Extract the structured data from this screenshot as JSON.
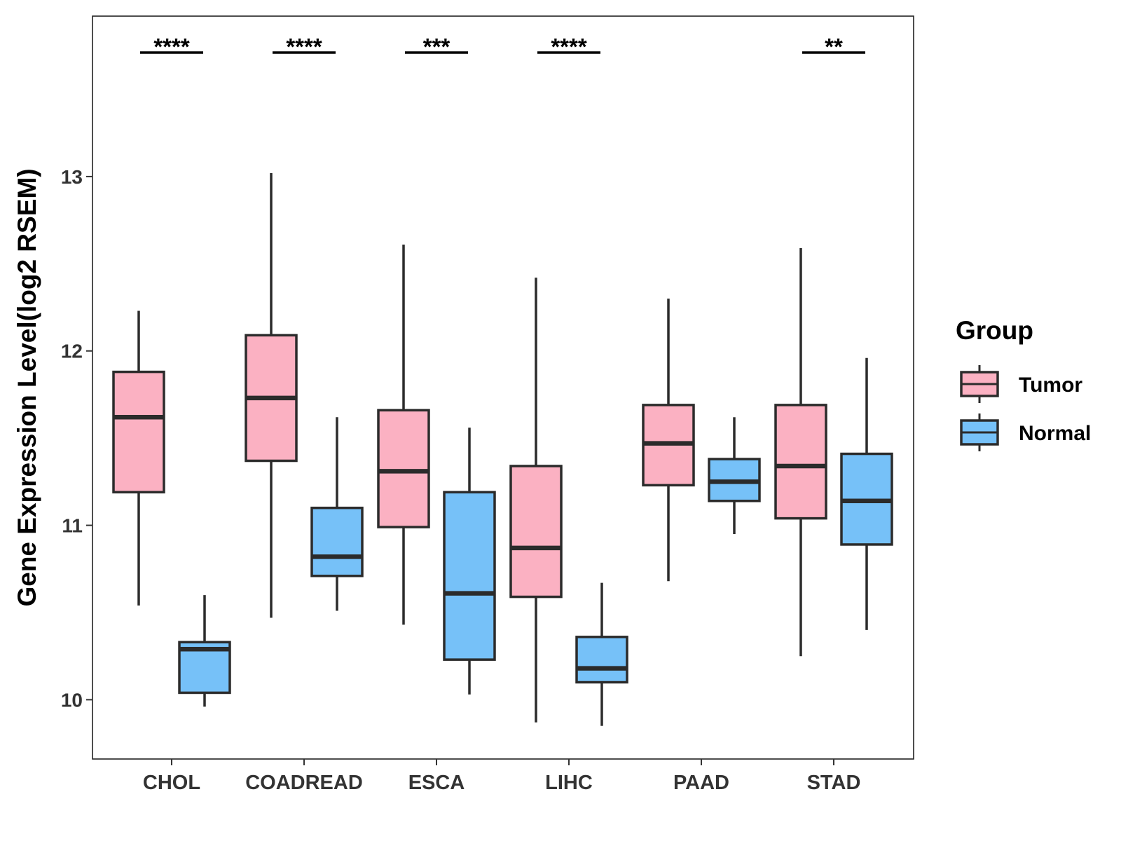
{
  "chart_data": {
    "type": "boxplot",
    "title": "",
    "xlabel": "",
    "ylabel": "Gene Expression Level(log2 RSEM)",
    "ylim": [
      9.66,
      13.92
    ],
    "yticks": [
      10,
      11,
      12,
      13
    ],
    "categories": [
      "CHOL",
      "COADREAD",
      "ESCA",
      "LIHC",
      "PAAD",
      "STAD"
    ],
    "series": [
      {
        "name": "Tumor",
        "color": "#FBB1C2",
        "boxes": [
          {
            "whisker_low": 10.54,
            "q1": 11.19,
            "median": 11.62,
            "q3": 11.88,
            "whisker_high": 12.23
          },
          {
            "whisker_low": 10.47,
            "q1": 11.37,
            "median": 11.73,
            "q3": 12.09,
            "whisker_high": 13.02
          },
          {
            "whisker_low": 10.43,
            "q1": 10.99,
            "median": 11.31,
            "q3": 11.66,
            "whisker_high": 12.61
          },
          {
            "whisker_low": 9.87,
            "q1": 10.59,
            "median": 10.87,
            "q3": 11.34,
            "whisker_high": 12.42
          },
          {
            "whisker_low": 10.68,
            "q1": 11.23,
            "median": 11.47,
            "q3": 11.69,
            "whisker_high": 12.3
          },
          {
            "whisker_low": 10.25,
            "q1": 11.04,
            "median": 11.34,
            "q3": 11.69,
            "whisker_high": 12.59
          }
        ]
      },
      {
        "name": "Normal",
        "color": "#76C1F8",
        "boxes": [
          {
            "whisker_low": 9.96,
            "q1": 10.04,
            "median": 10.29,
            "q3": 10.33,
            "whisker_high": 10.6
          },
          {
            "whisker_low": 10.51,
            "q1": 10.71,
            "median": 10.82,
            "q3": 11.1,
            "whisker_high": 11.62
          },
          {
            "whisker_low": 10.03,
            "q1": 10.23,
            "median": 10.61,
            "q3": 11.19,
            "whisker_high": 11.56
          },
          {
            "whisker_low": 9.85,
            "q1": 10.1,
            "median": 10.18,
            "q3": 10.36,
            "whisker_high": 10.67
          },
          {
            "whisker_low": 10.95,
            "q1": 11.14,
            "median": 11.25,
            "q3": 11.38,
            "whisker_high": 11.62
          },
          {
            "whisker_low": 10.4,
            "q1": 10.89,
            "median": 11.14,
            "q3": 11.41,
            "whisker_high": 11.96
          }
        ]
      }
    ],
    "significance": [
      {
        "category": "CHOL",
        "label": "****"
      },
      {
        "category": "COADREAD",
        "label": "****"
      },
      {
        "category": "ESCA",
        "label": "***"
      },
      {
        "category": "LIHC",
        "label": "****"
      },
      {
        "category": "STAD",
        "label": "**"
      }
    ],
    "legend": {
      "title": "Group",
      "position": "right",
      "entries": [
        "Tumor",
        "Normal"
      ]
    },
    "grid": false
  }
}
